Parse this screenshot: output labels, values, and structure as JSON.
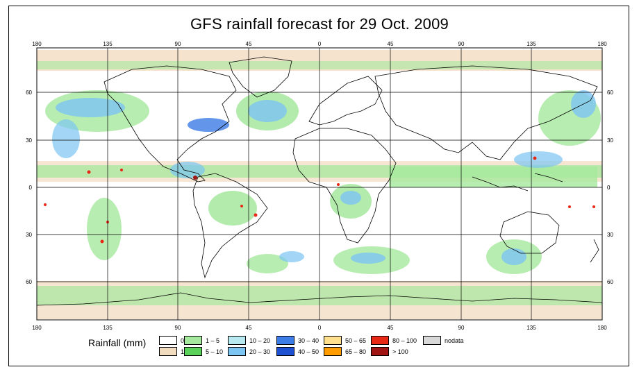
{
  "title": "GFS rainfall forecast for 29 Oct. 2009",
  "longitude_ticks": [
    "180",
    "135",
    "90",
    "45",
    "0",
    "45",
    "90",
    "135",
    "180"
  ],
  "latitude_ticks": [
    "60",
    "30",
    "0",
    "30",
    "60"
  ],
  "legend": {
    "title": "Rainfall (mm)",
    "items": [
      {
        "label": "0",
        "color": "#ffffff"
      },
      {
        "label": "1",
        "color": "#f2dcc0"
      },
      {
        "label": "1 – 5",
        "color": "#a6e89e"
      },
      {
        "label": "5 – 10",
        "color": "#5ad25a"
      },
      {
        "label": "10 – 20",
        "color": "#b8e8f0"
      },
      {
        "label": "20 – 30",
        "color": "#7cc4f2"
      },
      {
        "label": "30 – 40",
        "color": "#3c7ce6"
      },
      {
        "label": "40 – 50",
        "color": "#1e50d2"
      },
      {
        "label": "50 – 65",
        "color": "#ffe08c"
      },
      {
        "label": "65 – 80",
        "color": "#ff9c00"
      },
      {
        "label": "80 – 100",
        "color": "#e62814"
      },
      {
        "label": "> 100",
        "color": "#a01414"
      },
      {
        "label": "nodata",
        "color": "#d8d8d8"
      }
    ]
  }
}
